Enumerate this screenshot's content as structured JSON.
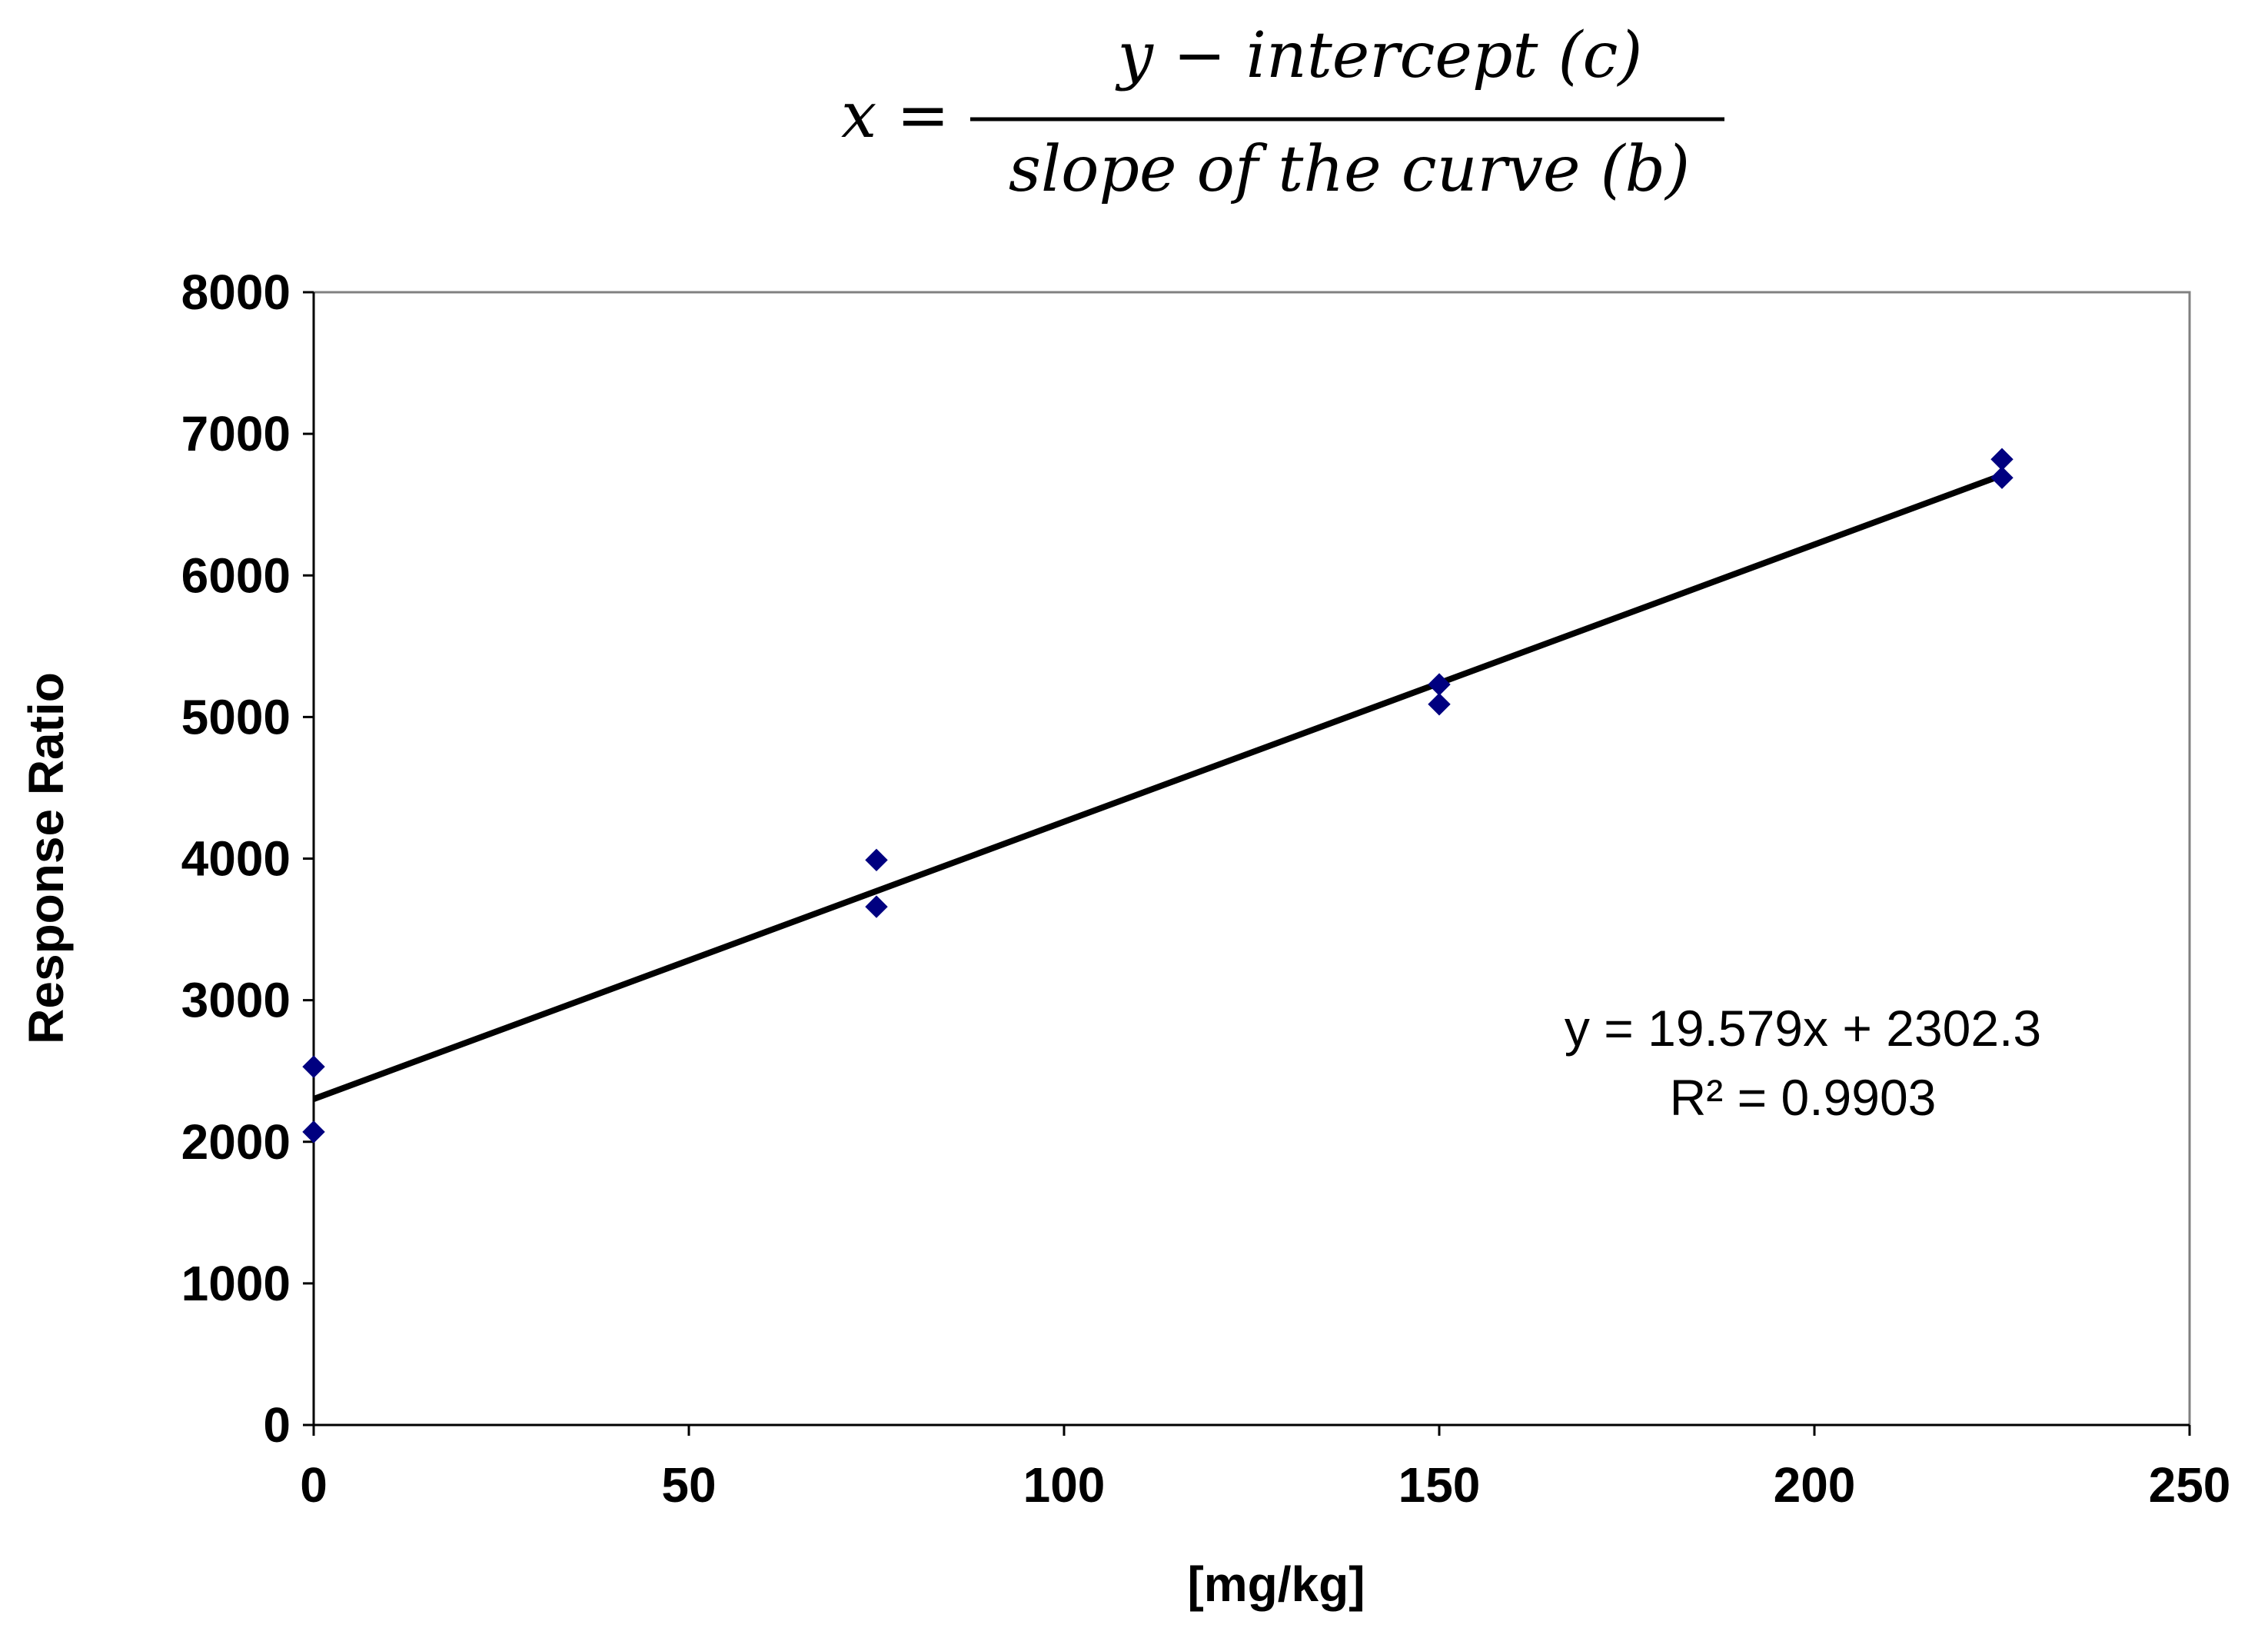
{
  "formula": {
    "lhs": "x =",
    "numerator": "y − intercept (c)",
    "denominator": "slope of the curve (b)"
  },
  "chart_data": {
    "type": "scatter",
    "xlabel": "[mg/kg]",
    "ylabel": "Response Ratio",
    "xlim": [
      0,
      250
    ],
    "ylim": [
      0,
      8000
    ],
    "xticks": [
      "0",
      "50",
      "100",
      "150",
      "200",
      "250"
    ],
    "yticks": [
      "0",
      "1000",
      "2000",
      "3000",
      "4000",
      "5000",
      "6000",
      "7000",
      "8000"
    ],
    "grid": false,
    "legend": "none",
    "series": [
      {
        "marker": "diamond",
        "color": "#000080",
        "points": [
          {
            "x": 0,
            "y": 2530
          },
          {
            "x": 0,
            "y": 2070
          },
          {
            "x": 75,
            "y": 3990
          },
          {
            "x": 75,
            "y": 3660
          },
          {
            "x": 150,
            "y": 5230
          },
          {
            "x": 150,
            "y": 5090
          },
          {
            "x": 225,
            "y": 6820
          },
          {
            "x": 225,
            "y": 6690
          }
        ]
      }
    ],
    "trendline": {
      "type": "linear",
      "slope": 19.579,
      "intercept": 2302.3,
      "x_range": [
        0,
        225
      ],
      "color": "#000000",
      "equation_label": "y = 19.579x + 2302.3",
      "r2_label": "R² = 0.9903"
    }
  }
}
